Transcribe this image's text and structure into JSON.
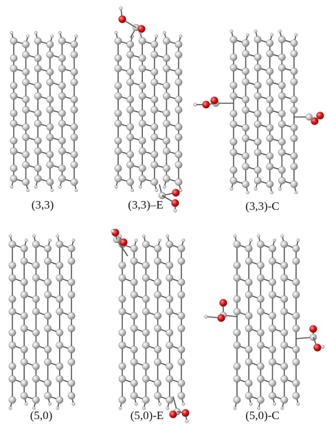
{
  "panels": [
    {
      "label": "(3,3)"
    },
    {
      "label": "(3,3)–E"
    },
    {
      "label": "(3,3)-C"
    },
    {
      "label": "(5,0)"
    },
    {
      "label": "(5,0)-E"
    },
    {
      "label": "(5,0)-C"
    }
  ]
}
